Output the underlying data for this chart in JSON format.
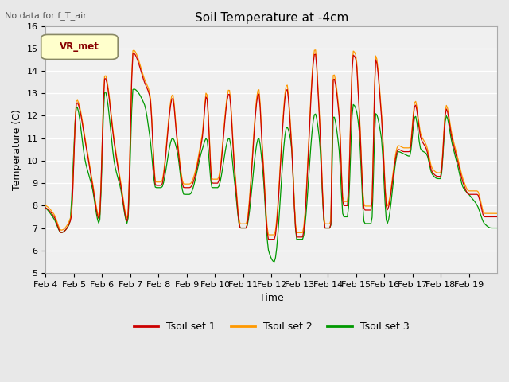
{
  "title": "Soil Temperature at -4cm",
  "subtitle": "No data for f_T_air",
  "xlabel": "Time",
  "ylabel": "Temperature (C)",
  "ylim": [
    5.0,
    16.0
  ],
  "yticks": [
    5.0,
    6.0,
    7.0,
    8.0,
    9.0,
    10.0,
    11.0,
    12.0,
    13.0,
    14.0,
    15.0,
    16.0
  ],
  "xtick_labels": [
    "Feb 4",
    "Feb 5",
    "Feb 6",
    "Feb 7",
    "Feb 8",
    "Feb 9",
    "Feb 10",
    "Feb 11",
    "Feb 12",
    "Feb 13",
    "Feb 14",
    "Feb 15",
    "Feb 16",
    "Feb 17",
    "Feb 18",
    "Feb 19"
  ],
  "line_colors": [
    "#cc0000",
    "#ff9900",
    "#009900"
  ],
  "legend_labels": [
    "Tsoil set 1",
    "Tsoil set 2",
    "Tsoil set 3"
  ],
  "vr_met_label": "VR_met",
  "background_color": "#e8e8e8",
  "plot_bg_color": "#f0f0f0",
  "grid_color": "#ffffff",
  "n_days": 16,
  "pts_per_day": 24,
  "figsize": [
    6.4,
    4.8
  ],
  "dpi": 100
}
